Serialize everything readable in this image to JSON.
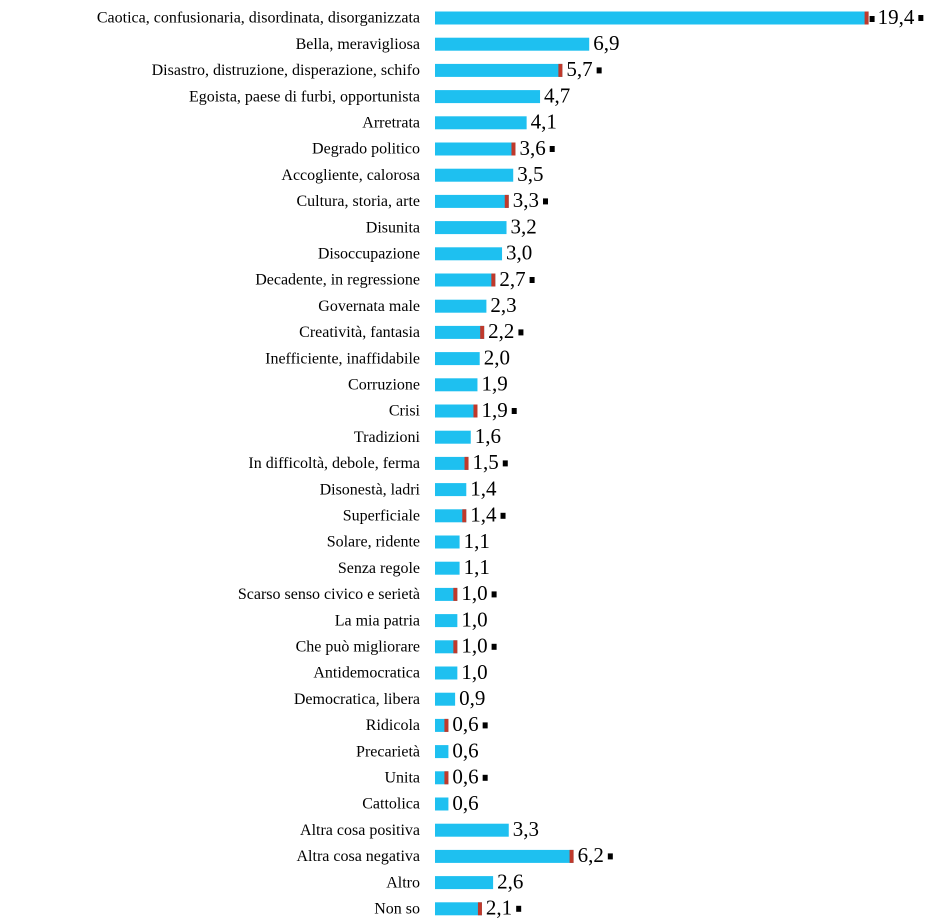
{
  "chart_data": {
    "type": "bar",
    "orientation": "horizontal",
    "color": "#1ec0f0",
    "flag_color": "#c0392b",
    "categories": [
      "Caotica, confusionaria, disordinata, disorganizzata",
      "Bella, meravigliosa",
      "Disastro, distruzione, disperazione, schifo",
      "Egoista, paese di furbi, opportunista",
      "Arretrata",
      "Degrado politico",
      "Accogliente, calorosa",
      "Cultura, storia, arte",
      "Disunita",
      "Disoccupazione",
      "Decadente, in regressione",
      "Governata male",
      "Creatività, fantasia",
      "Inefficiente, inaffidabile",
      "Corruzione",
      "Crisi",
      "Tradizioni",
      "In difficoltà, debole, ferma",
      "Disonestà, ladri",
      "Superficiale",
      "Solare, ridente",
      "Senza regole",
      "Scarso senso civico e serietà",
      "La mia patria",
      "Che può migliorare",
      "Antidemocratica",
      "Democratica, libera",
      "Ridicola",
      "Precarietà",
      "Unita",
      "Cattolica",
      "Altra cosa positiva",
      "Altra cosa negativa",
      "Altro",
      "Non so"
    ],
    "values": [
      19.4,
      6.9,
      5.7,
      4.7,
      4.1,
      3.6,
      3.5,
      3.3,
      3.2,
      3.0,
      2.7,
      2.3,
      2.2,
      2.0,
      1.9,
      1.9,
      1.6,
      1.5,
      1.4,
      1.4,
      1.1,
      1.1,
      1.0,
      1.0,
      1.0,
      1.0,
      0.9,
      0.6,
      0.6,
      0.6,
      0.6,
      3.3,
      6.2,
      2.6,
      2.1
    ],
    "value_labels": [
      "19,4",
      "6,9",
      "5,7",
      "4,7",
      "4,1",
      "3,6",
      "3,5",
      "3,3",
      "3,2",
      "3,0",
      "2,7",
      "2,3",
      "2,2",
      "2,0",
      "1,9",
      "1,9",
      "1,6",
      "1,5",
      "1,4",
      "1,4",
      "1,1",
      "1,1",
      "1,0",
      "1,0",
      "1,0",
      "1,0",
      "0,9",
      "0,6",
      "0,6",
      "0,6",
      "0,6",
      "3,3",
      "6,2",
      "2,6",
      "2,1"
    ],
    "flagged": [
      0,
      2,
      5,
      7,
      10,
      12,
      15,
      17,
      19,
      22,
      24,
      27,
      29,
      32,
      34
    ]
  }
}
